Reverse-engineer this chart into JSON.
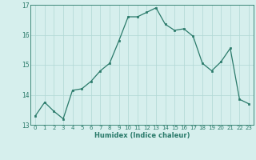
{
  "x": [
    0,
    1,
    2,
    3,
    4,
    5,
    6,
    7,
    8,
    9,
    10,
    11,
    12,
    13,
    14,
    15,
    16,
    17,
    18,
    19,
    20,
    21,
    22,
    23
  ],
  "y": [
    13.3,
    13.75,
    13.45,
    13.2,
    14.15,
    14.2,
    14.45,
    14.8,
    15.05,
    15.8,
    16.6,
    16.6,
    16.75,
    16.9,
    16.35,
    16.15,
    16.2,
    15.95,
    15.05,
    14.8,
    15.1,
    15.55,
    13.85,
    13.7
  ],
  "xlabel": "Humidex (Indice chaleur)",
  "ylim": [
    13,
    17
  ],
  "xlim_min": -0.5,
  "xlim_max": 23.5,
  "yticks": [
    13,
    14,
    15,
    16,
    17
  ],
  "xticks": [
    0,
    1,
    2,
    3,
    4,
    5,
    6,
    7,
    8,
    9,
    10,
    11,
    12,
    13,
    14,
    15,
    16,
    17,
    18,
    19,
    20,
    21,
    22,
    23
  ],
  "line_color": "#2a7a6a",
  "marker_color": "#2a7a6a",
  "bg_color": "#d6efed",
  "grid_color": "#b0d8d4",
  "font_color": "#2a7a6a",
  "axis_color": "#2a7a6a",
  "tick_fontsize": 5,
  "xlabel_fontsize": 6,
  "marker_size": 2,
  "line_width": 0.9
}
